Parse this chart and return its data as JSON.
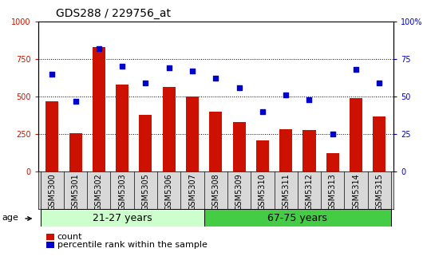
{
  "title": "GDS288 / 229756_at",
  "categories": [
    "GSM5300",
    "GSM5301",
    "GSM5302",
    "GSM5303",
    "GSM5305",
    "GSM5306",
    "GSM5307",
    "GSM5308",
    "GSM5309",
    "GSM5310",
    "GSM5311",
    "GSM5312",
    "GSM5313",
    "GSM5314",
    "GSM5315"
  ],
  "bar_values": [
    470,
    255,
    830,
    580,
    375,
    565,
    500,
    400,
    330,
    205,
    280,
    275,
    120,
    490,
    365
  ],
  "scatter_values": [
    65,
    47,
    82,
    70,
    59,
    69,
    67,
    62,
    56,
    40,
    51,
    48,
    25,
    68,
    59
  ],
  "bar_color": "#cc1100",
  "scatter_color": "#0000cc",
  "ylim_left": [
    0,
    1000
  ],
  "ylim_right": [
    0,
    100
  ],
  "yticks_left": [
    0,
    250,
    500,
    750,
    1000
  ],
  "ytick_labels_left": [
    "0",
    "250",
    "500",
    "750",
    "1000"
  ],
  "yticks_right": [
    0,
    25,
    50,
    75,
    100
  ],
  "ytick_labels_right": [
    "0",
    "25",
    "50",
    "75",
    "100%"
  ],
  "group1_label": "21-27 years",
  "group2_label": "67-75 years",
  "group1_end_idx": 6,
  "group2_start_idx": 7,
  "age_label": "age",
  "legend_count": "count",
  "legend_percentile": "percentile rank within the sample",
  "xticklabel_bg": "#d8d8d8",
  "group1_color": "#ccffcc",
  "group2_color": "#44cc44",
  "title_fontsize": 10,
  "tick_fontsize": 7,
  "bar_width": 0.55,
  "xlim": [
    -0.6,
    14.6
  ]
}
